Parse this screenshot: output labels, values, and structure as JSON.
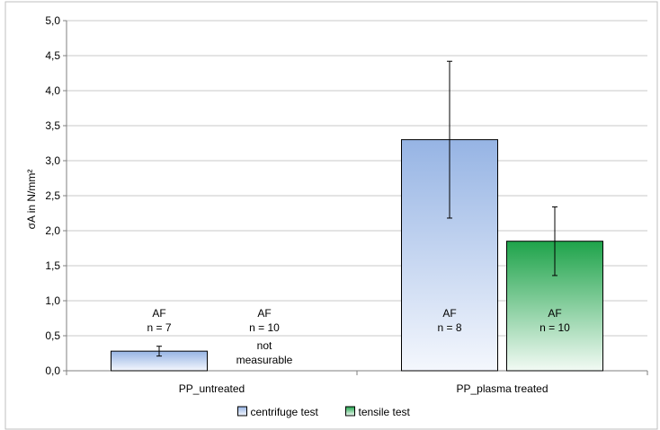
{
  "chart_data": {
    "type": "bar",
    "ylabel": "σA in N/mm²",
    "ylim": [
      0,
      5
    ],
    "ytick_step": 0.5,
    "decimal_separator": ",",
    "grid": true,
    "legend_placement": "bottom-center",
    "categories": [
      "PP_untreated",
      "PP_plasma treated"
    ],
    "series": [
      {
        "name": "centrifuge test",
        "color_top": "#96b4e4",
        "color_bottom": "#f4f7fd",
        "values": [
          0.28,
          3.3
        ],
        "error": [
          0.07,
          1.12
        ],
        "labels": [
          [
            "AF",
            "n = 7"
          ],
          [
            "AF",
            "n = 8"
          ]
        ]
      },
      {
        "name": "tensile test",
        "color_top": "#1ea34a",
        "color_bottom": "#f2faf4",
        "values": [
          null,
          1.85
        ],
        "error": [
          null,
          0.49
        ],
        "labels": [
          [
            "AF",
            "n = 10",
            "not",
            "measurable"
          ],
          [
            "AF",
            "n = 10"
          ]
        ]
      }
    ]
  }
}
